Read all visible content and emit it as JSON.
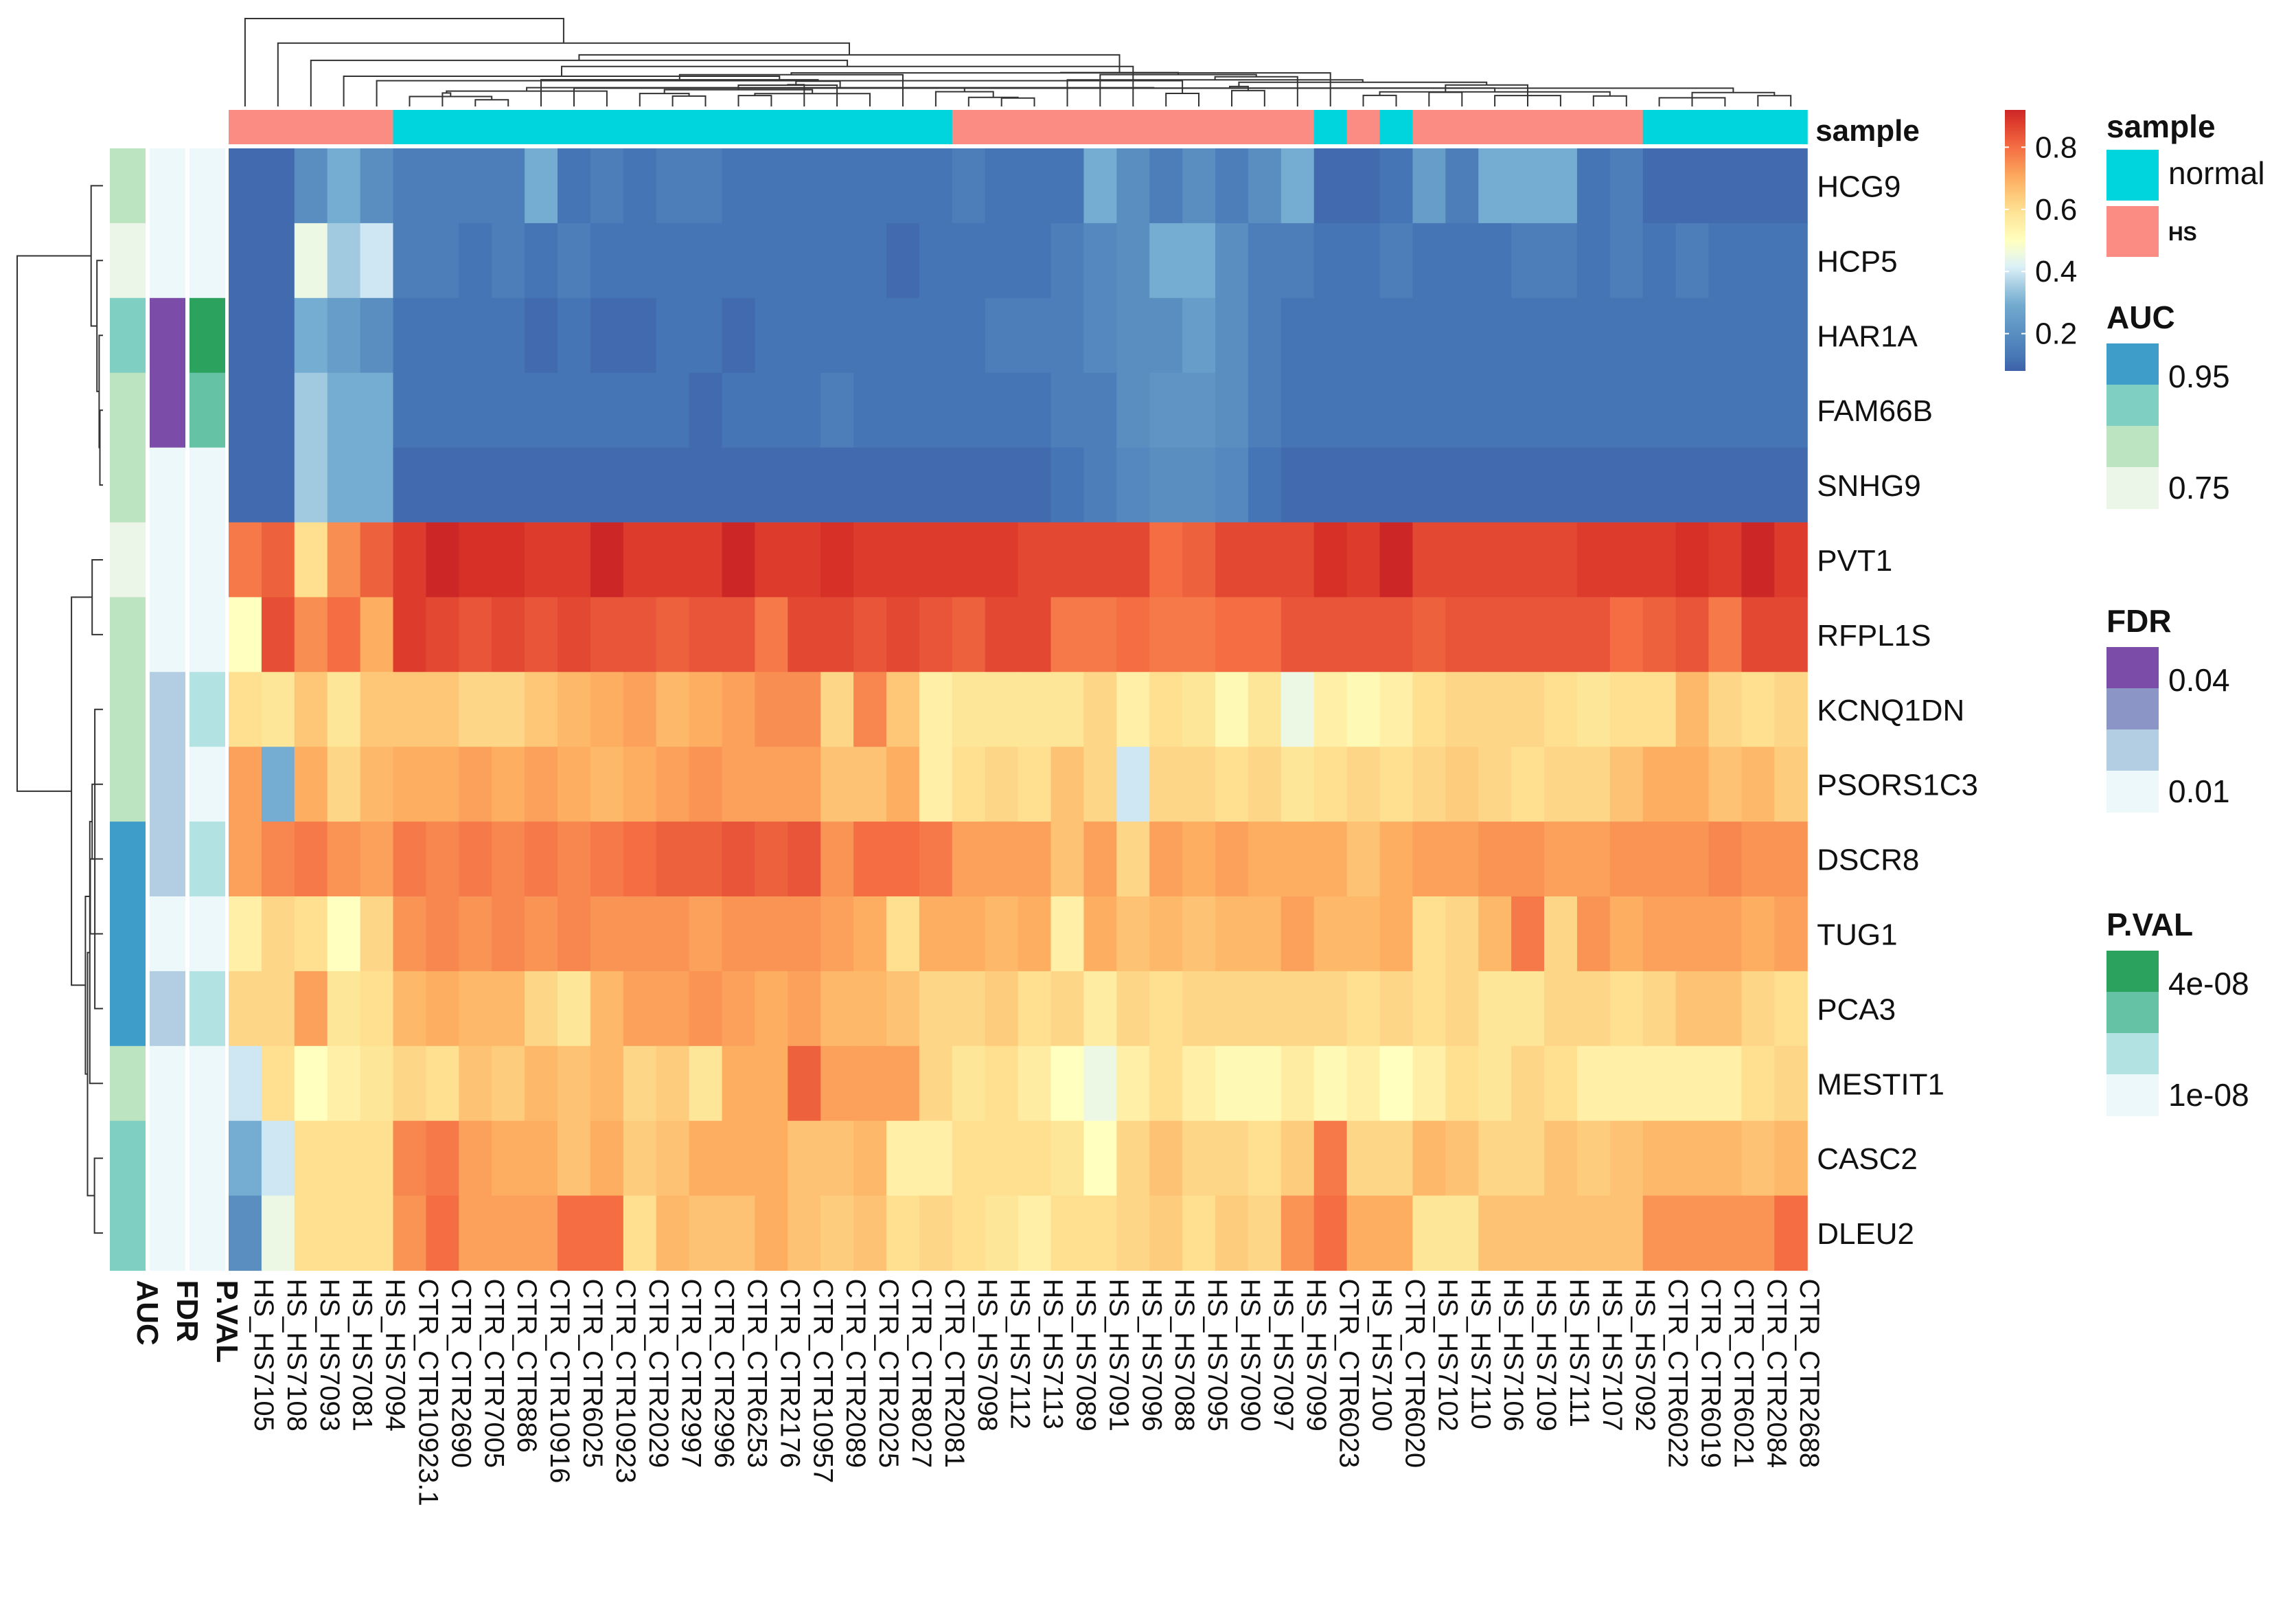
{
  "chart_data": {
    "type": "heatmap",
    "title": "",
    "value_range": [
      0,
      1
    ],
    "samples": [
      "HS_HS7105",
      "HS_HS7108",
      "HS_HS7093",
      "HS_HS7081",
      "HS_HS7094",
      "CTR_CTR10923.1",
      "CTR_CTR2690",
      "CTR_CTR7005",
      "CTR_CTR886",
      "CTR_CTR10916",
      "CTR_CTR6025",
      "CTR_CTR10923",
      "CTR_CTR2029",
      "CTR_CTR2997",
      "CTR_CTR2996",
      "CTR_CTR6253",
      "CTR_CTR2176",
      "CTR_CTR10957",
      "CTR_CTR2089",
      "CTR_CTR2025",
      "CTR_CTR8027",
      "CTR_CTR2081",
      "HS_HS7098",
      "HS_HS7112",
      "HS_HS7113",
      "HS_HS7089",
      "HS_HS7091",
      "HS_HS7096",
      "HS_HS7088",
      "HS_HS7095",
      "HS_HS7090",
      "HS_HS7097",
      "HS_HS7099",
      "CTR_CTR6023",
      "HS_HS7100",
      "CTR_CTR6020",
      "HS_HS7102",
      "HS_HS7110",
      "HS_HS7106",
      "HS_HS7109",
      "HS_HS7111",
      "HS_HS7107",
      "HS_HS7092",
      "CTR_CTR6022",
      "CTR_CTR6019",
      "CTR_CTR6021",
      "CTR_CTR2084",
      "CTR_CTR2688"
    ],
    "sample_groups": [
      "HS",
      "HS",
      "HS",
      "HS",
      "HS",
      "normal",
      "normal",
      "normal",
      "normal",
      "normal",
      "normal",
      "normal",
      "normal",
      "normal",
      "normal",
      "normal",
      "normal",
      "normal",
      "normal",
      "normal",
      "normal",
      "normal",
      "HS",
      "HS",
      "HS",
      "HS",
      "HS",
      "HS",
      "HS",
      "HS",
      "HS",
      "HS",
      "HS",
      "normal",
      "HS",
      "normal",
      "HS",
      "HS",
      "HS",
      "HS",
      "HS",
      "HS",
      "HS",
      "normal",
      "normal",
      "normal",
      "normal",
      "normal"
    ],
    "genes": [
      "HCG9",
      "HCP5",
      "HAR1A",
      "FAM66B",
      "SNHG9",
      "PVT1",
      "RFPL1S",
      "KCNQ1DN",
      "PSORS1C3",
      "DSCR8",
      "TUG1",
      "PCA3",
      "MESTIT1",
      "CASC2",
      "DLEU2"
    ],
    "values": [
      [
        0.1,
        0.1,
        0.2,
        0.3,
        0.2,
        0.15,
        0.15,
        0.15,
        0.15,
        0.3,
        0.12,
        0.15,
        0.12,
        0.15,
        0.15,
        0.12,
        0.12,
        0.12,
        0.12,
        0.12,
        0.12,
        0.12,
        0.15,
        0.12,
        0.12,
        0.12,
        0.3,
        0.2,
        0.15,
        0.2,
        0.15,
        0.2,
        0.3,
        0.1,
        0.1,
        0.12,
        0.25,
        0.15,
        0.3,
        0.3,
        0.3,
        0.12,
        0.15,
        0.1,
        0.1,
        0.1,
        0.1,
        0.1
      ],
      [
        0.1,
        0.1,
        0.45,
        0.35,
        0.4,
        0.15,
        0.15,
        0.12,
        0.15,
        0.12,
        0.15,
        0.12,
        0.12,
        0.12,
        0.12,
        0.12,
        0.12,
        0.12,
        0.12,
        0.12,
        0.1,
        0.12,
        0.12,
        0.12,
        0.12,
        0.15,
        0.18,
        0.2,
        0.3,
        0.3,
        0.2,
        0.15,
        0.15,
        0.12,
        0.12,
        0.15,
        0.12,
        0.12,
        0.12,
        0.15,
        0.15,
        0.12,
        0.15,
        0.12,
        0.15,
        0.12,
        0.12,
        0.12
      ],
      [
        0.1,
        0.1,
        0.3,
        0.25,
        0.2,
        0.12,
        0.12,
        0.12,
        0.12,
        0.1,
        0.12,
        0.1,
        0.1,
        0.12,
        0.12,
        0.1,
        0.12,
        0.12,
        0.12,
        0.12,
        0.12,
        0.12,
        0.12,
        0.15,
        0.15,
        0.15,
        0.18,
        0.2,
        0.2,
        0.25,
        0.2,
        0.15,
        0.12,
        0.12,
        0.12,
        0.12,
        0.12,
        0.12,
        0.12,
        0.12,
        0.12,
        0.12,
        0.12,
        0.12,
        0.12,
        0.12,
        0.12,
        0.12
      ],
      [
        0.1,
        0.1,
        0.35,
        0.3,
        0.3,
        0.12,
        0.12,
        0.12,
        0.12,
        0.12,
        0.12,
        0.12,
        0.12,
        0.12,
        0.1,
        0.12,
        0.12,
        0.12,
        0.15,
        0.12,
        0.12,
        0.12,
        0.12,
        0.12,
        0.12,
        0.15,
        0.15,
        0.2,
        0.22,
        0.22,
        0.2,
        0.15,
        0.12,
        0.12,
        0.12,
        0.12,
        0.12,
        0.12,
        0.12,
        0.12,
        0.12,
        0.12,
        0.12,
        0.12,
        0.12,
        0.12,
        0.12,
        0.12
      ],
      [
        0.1,
        0.1,
        0.35,
        0.3,
        0.3,
        0.1,
        0.1,
        0.1,
        0.1,
        0.1,
        0.1,
        0.1,
        0.1,
        0.1,
        0.1,
        0.1,
        0.1,
        0.1,
        0.1,
        0.1,
        0.1,
        0.1,
        0.1,
        0.1,
        0.1,
        0.12,
        0.15,
        0.18,
        0.2,
        0.2,
        0.18,
        0.12,
        0.1,
        0.1,
        0.1,
        0.1,
        0.1,
        0.1,
        0.1,
        0.1,
        0.1,
        0.1,
        0.1,
        0.1,
        0.1,
        0.1,
        0.1,
        0.1
      ],
      [
        0.78,
        0.82,
        0.6,
        0.75,
        0.82,
        0.88,
        0.92,
        0.9,
        0.9,
        0.88,
        0.88,
        0.92,
        0.88,
        0.88,
        0.88,
        0.92,
        0.88,
        0.88,
        0.9,
        0.88,
        0.88,
        0.88,
        0.88,
        0.88,
        0.86,
        0.86,
        0.86,
        0.86,
        0.8,
        0.82,
        0.86,
        0.86,
        0.86,
        0.9,
        0.88,
        0.92,
        0.86,
        0.86,
        0.86,
        0.86,
        0.86,
        0.88,
        0.88,
        0.88,
        0.9,
        0.88,
        0.92,
        0.88
      ],
      [
        0.5,
        0.85,
        0.75,
        0.8,
        0.7,
        0.88,
        0.86,
        0.84,
        0.86,
        0.84,
        0.86,
        0.84,
        0.84,
        0.82,
        0.84,
        0.84,
        0.78,
        0.86,
        0.86,
        0.84,
        0.86,
        0.84,
        0.82,
        0.86,
        0.86,
        0.78,
        0.78,
        0.8,
        0.78,
        0.78,
        0.8,
        0.8,
        0.84,
        0.84,
        0.84,
        0.84,
        0.82,
        0.84,
        0.84,
        0.84,
        0.84,
        0.84,
        0.8,
        0.82,
        0.84,
        0.78,
        0.86,
        0.86
      ],
      [
        0.6,
        0.58,
        0.65,
        0.58,
        0.65,
        0.65,
        0.65,
        0.62,
        0.62,
        0.65,
        0.68,
        0.7,
        0.72,
        0.68,
        0.7,
        0.72,
        0.75,
        0.75,
        0.62,
        0.76,
        0.65,
        0.55,
        0.58,
        0.58,
        0.58,
        0.58,
        0.62,
        0.55,
        0.6,
        0.58,
        0.52,
        0.58,
        0.45,
        0.55,
        0.52,
        0.55,
        0.6,
        0.62,
        0.62,
        0.62,
        0.6,
        0.58,
        0.6,
        0.6,
        0.68,
        0.62,
        0.6,
        0.62
      ],
      [
        0.72,
        0.3,
        0.7,
        0.62,
        0.68,
        0.7,
        0.7,
        0.72,
        0.7,
        0.72,
        0.7,
        0.68,
        0.7,
        0.72,
        0.74,
        0.72,
        0.72,
        0.72,
        0.66,
        0.66,
        0.7,
        0.55,
        0.6,
        0.62,
        0.6,
        0.66,
        0.62,
        0.4,
        0.62,
        0.62,
        0.6,
        0.62,
        0.58,
        0.6,
        0.62,
        0.6,
        0.62,
        0.64,
        0.62,
        0.6,
        0.62,
        0.62,
        0.66,
        0.7,
        0.7,
        0.66,
        0.68,
        0.64
      ],
      [
        0.72,
        0.76,
        0.78,
        0.74,
        0.72,
        0.78,
        0.76,
        0.78,
        0.76,
        0.78,
        0.76,
        0.78,
        0.8,
        0.82,
        0.82,
        0.84,
        0.82,
        0.84,
        0.74,
        0.8,
        0.8,
        0.78,
        0.72,
        0.72,
        0.72,
        0.66,
        0.72,
        0.62,
        0.72,
        0.7,
        0.72,
        0.7,
        0.7,
        0.7,
        0.66,
        0.7,
        0.72,
        0.72,
        0.74,
        0.74,
        0.72,
        0.72,
        0.74,
        0.74,
        0.74,
        0.76,
        0.74,
        0.74
      ],
      [
        0.55,
        0.62,
        0.6,
        0.5,
        0.62,
        0.74,
        0.76,
        0.74,
        0.76,
        0.74,
        0.76,
        0.74,
        0.74,
        0.74,
        0.72,
        0.74,
        0.74,
        0.74,
        0.72,
        0.7,
        0.6,
        0.7,
        0.7,
        0.68,
        0.7,
        0.55,
        0.7,
        0.66,
        0.68,
        0.66,
        0.68,
        0.68,
        0.72,
        0.68,
        0.68,
        0.7,
        0.6,
        0.62,
        0.68,
        0.78,
        0.62,
        0.74,
        0.7,
        0.72,
        0.72,
        0.72,
        0.7,
        0.72
      ],
      [
        0.62,
        0.62,
        0.72,
        0.58,
        0.6,
        0.68,
        0.7,
        0.68,
        0.68,
        0.62,
        0.58,
        0.68,
        0.72,
        0.72,
        0.74,
        0.72,
        0.7,
        0.72,
        0.68,
        0.68,
        0.66,
        0.62,
        0.62,
        0.64,
        0.6,
        0.62,
        0.56,
        0.62,
        0.6,
        0.62,
        0.62,
        0.62,
        0.62,
        0.62,
        0.6,
        0.62,
        0.6,
        0.62,
        0.58,
        0.58,
        0.62,
        0.62,
        0.6,
        0.62,
        0.66,
        0.66,
        0.62,
        0.6
      ],
      [
        0.4,
        0.6,
        0.5,
        0.55,
        0.58,
        0.62,
        0.6,
        0.66,
        0.64,
        0.68,
        0.66,
        0.68,
        0.62,
        0.64,
        0.58,
        0.7,
        0.7,
        0.82,
        0.72,
        0.72,
        0.72,
        0.62,
        0.58,
        0.6,
        0.56,
        0.5,
        0.45,
        0.55,
        0.6,
        0.55,
        0.52,
        0.52,
        0.56,
        0.52,
        0.55,
        0.5,
        0.55,
        0.6,
        0.58,
        0.62,
        0.6,
        0.55,
        0.55,
        0.55,
        0.55,
        0.55,
        0.6,
        0.62
      ],
      [
        0.3,
        0.4,
        0.6,
        0.6,
        0.6,
        0.76,
        0.78,
        0.72,
        0.7,
        0.7,
        0.66,
        0.7,
        0.64,
        0.66,
        0.7,
        0.7,
        0.7,
        0.66,
        0.66,
        0.68,
        0.55,
        0.55,
        0.6,
        0.6,
        0.6,
        0.58,
        0.5,
        0.62,
        0.66,
        0.62,
        0.62,
        0.6,
        0.64,
        0.78,
        0.62,
        0.62,
        0.68,
        0.66,
        0.62,
        0.62,
        0.66,
        0.64,
        0.66,
        0.68,
        0.68,
        0.68,
        0.66,
        0.68
      ],
      [
        0.2,
        0.45,
        0.6,
        0.6,
        0.6,
        0.74,
        0.8,
        0.72,
        0.72,
        0.72,
        0.8,
        0.8,
        0.6,
        0.68,
        0.66,
        0.66,
        0.7,
        0.66,
        0.64,
        0.66,
        0.6,
        0.62,
        0.6,
        0.58,
        0.55,
        0.6,
        0.6,
        0.62,
        0.64,
        0.6,
        0.64,
        0.62,
        0.74,
        0.8,
        0.7,
        0.7,
        0.58,
        0.58,
        0.66,
        0.66,
        0.66,
        0.66,
        0.66,
        0.74,
        0.74,
        0.74,
        0.74,
        0.8
      ]
    ],
    "row_annotations": {
      "AUC": [
        0.85,
        0.78,
        0.88,
        0.82,
        0.8,
        0.78,
        0.8,
        0.82,
        0.8,
        0.92,
        0.92,
        0.96,
        0.8,
        0.86,
        0.86
      ],
      "FDR": [
        0.01,
        0.01,
        0.04,
        0.035,
        0.01,
        0.01,
        0.01,
        0.02,
        0.02,
        0.02,
        0.01,
        0.02,
        0.01,
        0.01,
        0.01
      ],
      "P.VAL": [
        1e-08,
        1e-08,
        4e-08,
        3.5e-08,
        1e-08,
        1e-08,
        1e-08,
        2e-08,
        1e-08,
        2e-08,
        1e-08,
        2e-08,
        1e-08,
        1e-08,
        1e-08
      ]
    },
    "column_annotation_label": "sample",
    "row_annotation_labels": [
      "AUC",
      "FDR",
      "P.VAL"
    ],
    "colorbar": {
      "ticks": [
        "0.8",
        "0.6",
        "0.4",
        "0.2"
      ],
      "tick_values": [
        0.8,
        0.6,
        0.4,
        0.2
      ]
    },
    "legend": {
      "sample": {
        "title": "sample",
        "entries": [
          {
            "label": "normal",
            "color": "#00D5DD"
          },
          {
            "label": "HS",
            "color": "#FA8C84"
          }
        ]
      },
      "AUC": {
        "title": "AUC",
        "labels": [
          "0.95",
          "0.75"
        ],
        "colors": [
          "#3F9DC9",
          "#7FCFC3",
          "#BDE4C1",
          "#ECF6E8"
        ]
      },
      "FDR": {
        "title": "FDR",
        "labels": [
          "0.04",
          "0.01"
        ],
        "colors": [
          "#7C4DA8",
          "#8C96C6",
          "#B3CDE3",
          "#EDF8FB"
        ]
      },
      "P.VAL": {
        "title": "P.VAL",
        "labels": [
          "4e-08",
          "1e-08"
        ],
        "colors": [
          "#2CA25F",
          "#66C2A4",
          "#B2E2E2",
          "#EDF8FB"
        ]
      }
    }
  }
}
